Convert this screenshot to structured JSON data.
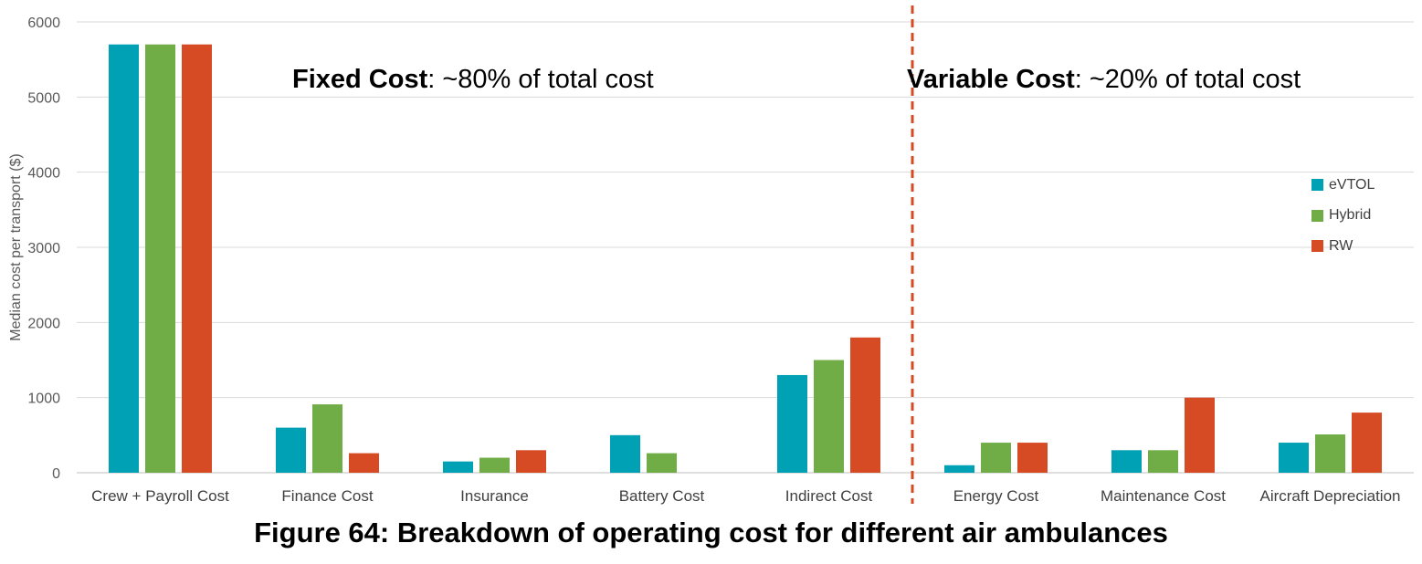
{
  "chart_data": {
    "type": "bar",
    "caption": "Figure 64: Breakdown of operating cost for different air ambulances",
    "ylabel": "Median cost per transport ($)",
    "xlabel": "",
    "ylim": [
      0,
      6000
    ],
    "yticks": [
      "0",
      "1000",
      "2000",
      "3000",
      "4000",
      "5000",
      "6000"
    ],
    "grid": true,
    "legend_position": "right",
    "categories": [
      "Crew + Payroll Cost",
      "Finance Cost",
      "Insurance",
      "Battery Cost",
      "Indirect Cost",
      "Energy Cost",
      "Maintenance Cost",
      "Aircraft Depreciation"
    ],
    "series": [
      {
        "name": "eVTOL",
        "color": "#00A0B5",
        "values": [
          5700,
          600,
          150,
          500,
          1300,
          100,
          300,
          400
        ]
      },
      {
        "name": "Hybrid",
        "color": "#70AD47",
        "values": [
          5700,
          910,
          200,
          260,
          1500,
          400,
          300,
          510
        ]
      },
      {
        "name": "RW",
        "color": "#D64B23",
        "values": [
          5700,
          260,
          300,
          0,
          1800,
          400,
          1000,
          800
        ]
      }
    ],
    "divider": {
      "after_category": "Indirect Cost",
      "color": "#D64B23",
      "style": "dashed"
    },
    "annotations": {
      "fixed": {
        "bold": "Fixed Cost",
        "rest": ": ~80% of total cost"
      },
      "variable": {
        "bold": "Variable Cost",
        "rest": ": ~20% of total cost"
      }
    }
  }
}
